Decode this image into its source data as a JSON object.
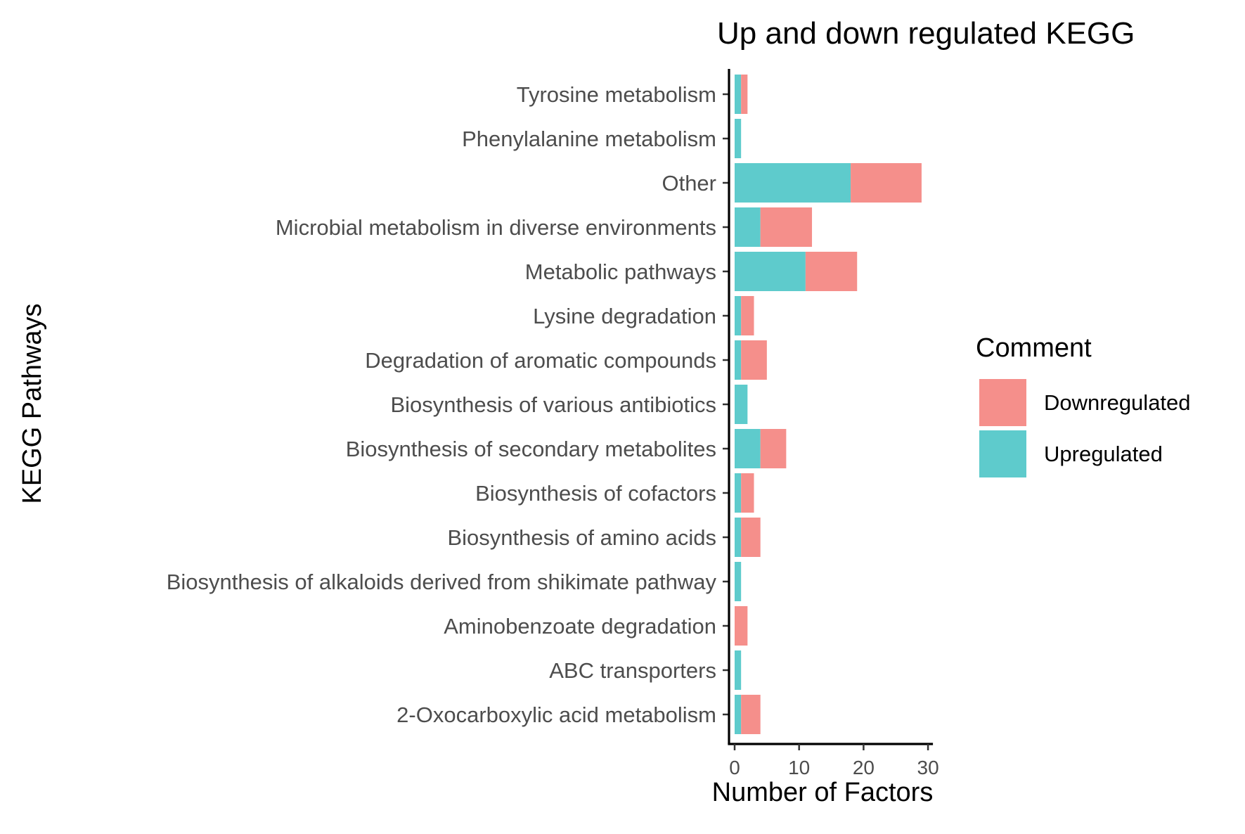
{
  "chart_data": {
    "type": "bar",
    "orientation": "horizontal",
    "stacked": true,
    "title": "Up and down regulated KEGG",
    "xlabel": "Number of Factors",
    "ylabel": "KEGG Pathways",
    "xlim": [
      0,
      30
    ],
    "xticks": [
      "0",
      "10",
      "20",
      "30"
    ],
    "grid": false,
    "legend_position": "right",
    "legend_title": "Comment",
    "categories": [
      "Tyrosine metabolism",
      "Phenylalanine metabolism",
      "Other",
      "Microbial metabolism in diverse environments",
      "Metabolic pathways",
      "Lysine degradation",
      "Degradation of aromatic compounds",
      "Biosynthesis of various antibiotics",
      "Biosynthesis of secondary metabolites",
      "Biosynthesis of cofactors",
      "Biosynthesis of amino acids",
      "Biosynthesis of alkaloids derived from shikimate pathway",
      "Aminobenzoate degradation",
      "ABC transporters",
      "2-Oxocarboxylic acid metabolism"
    ],
    "series": [
      {
        "name": "Upregulated",
        "color": "#5ecbcc",
        "values": [
          1,
          1,
          18,
          4,
          11,
          1,
          1,
          2,
          4,
          1,
          1,
          1,
          0,
          1,
          1
        ]
      },
      {
        "name": "Downregulated",
        "color": "#f58f8b",
        "values": [
          1,
          0,
          11,
          8,
          8,
          2,
          4,
          0,
          4,
          2,
          3,
          0,
          2,
          0,
          3
        ]
      }
    ],
    "legend_order": [
      "Downregulated",
      "Upregulated"
    ]
  }
}
